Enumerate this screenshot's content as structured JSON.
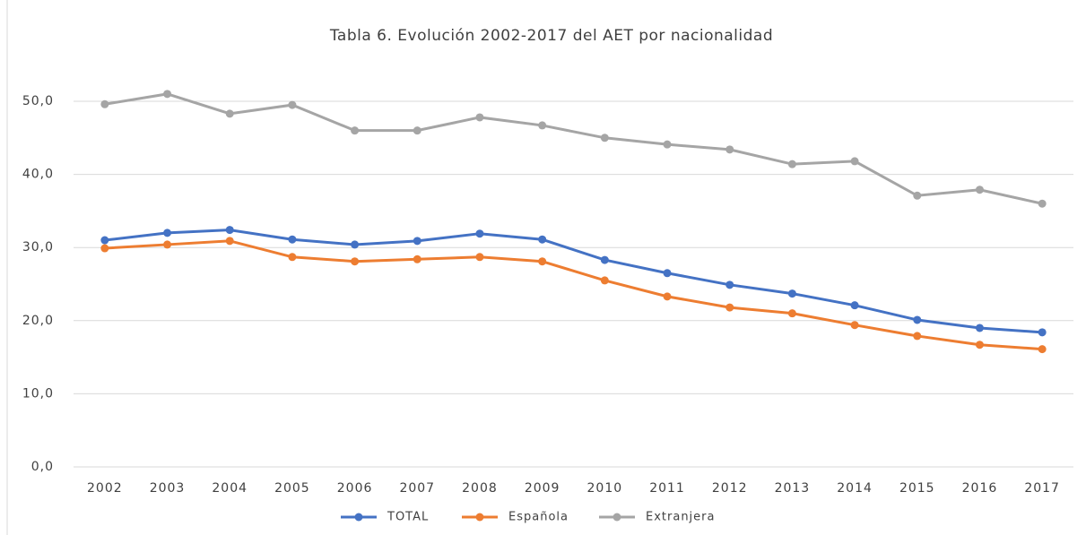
{
  "chart_data": {
    "type": "line",
    "title": "Tabla 6. Evolución 2002-2017 del AET por nacionalidad",
    "categories": [
      "2002",
      "2003",
      "2004",
      "2005",
      "2006",
      "2007",
      "2008",
      "2009",
      "2010",
      "2011",
      "2012",
      "2013",
      "2014",
      "2015",
      "2016",
      "2017"
    ],
    "series": [
      {
        "name": "TOTAL",
        "color": "#4472c4",
        "values": [
          31.0,
          32.0,
          32.4,
          31.1,
          30.4,
          30.9,
          31.9,
          31.1,
          28.3,
          26.5,
          24.9,
          23.7,
          22.1,
          20.1,
          19.0,
          18.4
        ]
      },
      {
        "name": "Española",
        "color": "#ed7d31",
        "values": [
          29.9,
          30.4,
          30.9,
          28.7,
          28.1,
          28.4,
          28.7,
          28.1,
          25.5,
          23.3,
          21.8,
          21.0,
          19.4,
          17.9,
          16.7,
          16.1
        ]
      },
      {
        "name": "Extranjera",
        "color": "#a5a5a5",
        "values": [
          49.6,
          51.0,
          48.3,
          49.5,
          46.0,
          46.0,
          47.8,
          46.7,
          45.0,
          44.1,
          43.4,
          41.4,
          41.8,
          37.1,
          37.9,
          36.0
        ]
      }
    ],
    "ylim": [
      0,
      50
    ],
    "yticks": [
      {
        "value": 0,
        "label": "0,0"
      },
      {
        "value": 10,
        "label": "10,0"
      },
      {
        "value": 20,
        "label": "20,0"
      },
      {
        "value": 30,
        "label": "30,0"
      },
      {
        "value": 40,
        "label": "40,0"
      },
      {
        "value": 50,
        "label": "50,0"
      }
    ],
    "grid": true,
    "legend": "bottom"
  }
}
